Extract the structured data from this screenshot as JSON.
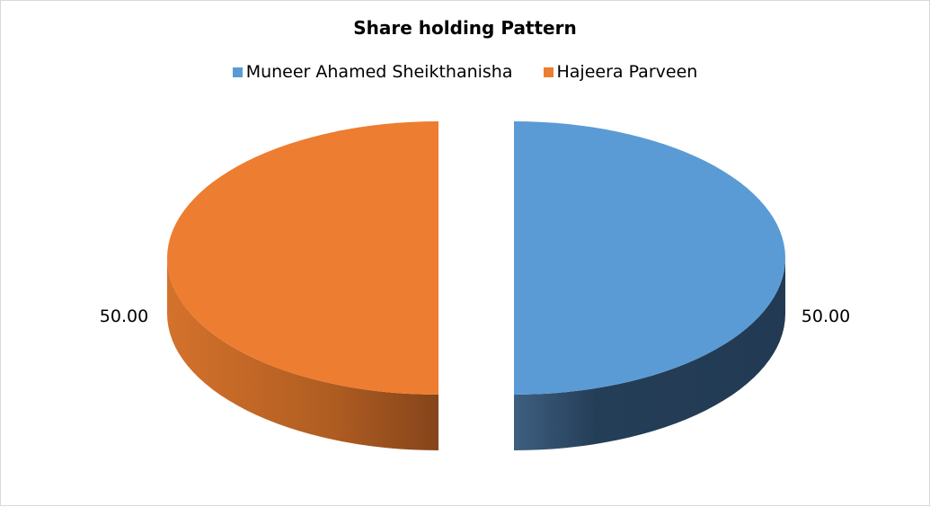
{
  "chart_data": {
    "type": "pie",
    "style": "3d-exploded",
    "title": "Share holding Pattern",
    "legend_position": "top",
    "categories": [
      "Muneer Ahamed Sheikthanisha",
      "Hajeera Parveen"
    ],
    "values": [
      50.0,
      50.0
    ],
    "data_labels": [
      "50.00",
      "50.00"
    ],
    "colors": [
      "#5b9bd5",
      "#ed7d31"
    ]
  }
}
